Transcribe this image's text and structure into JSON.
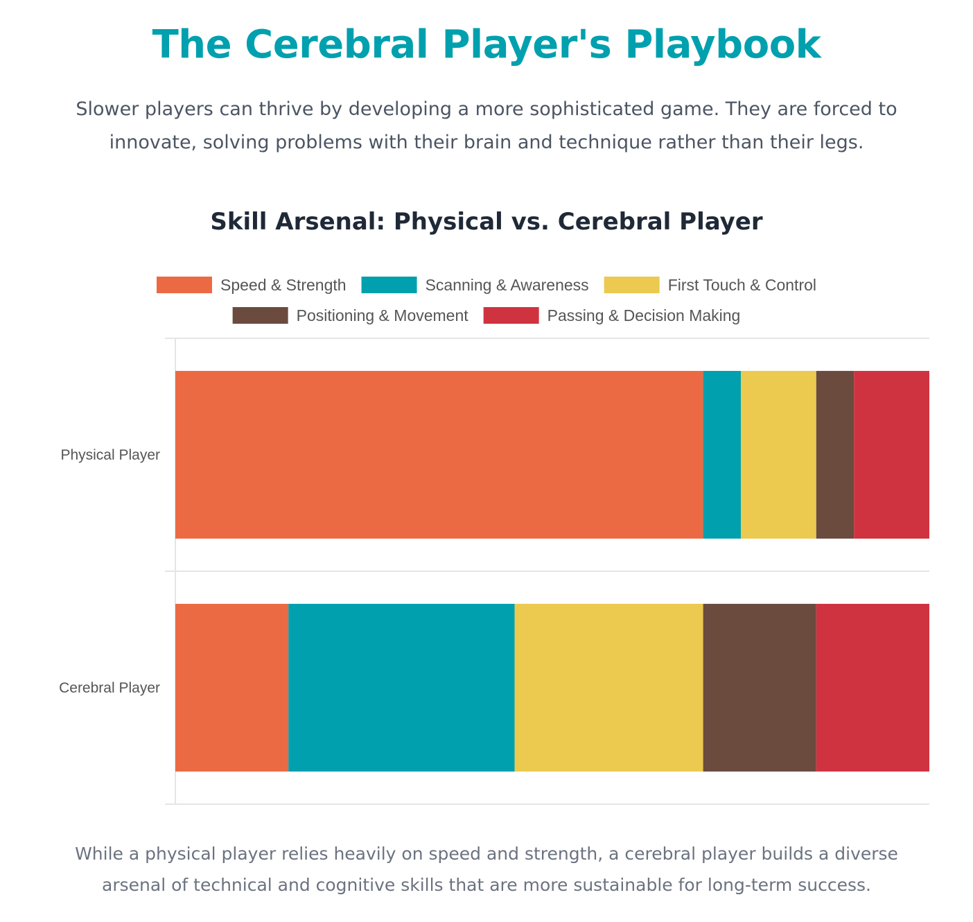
{
  "header": {
    "title": "The Cerebral Player's Playbook",
    "intro": "Slower players can thrive by developing a more sophisticated game. They are forced to innovate, solving problems with their brain and technique rather than their legs."
  },
  "footer": {
    "text": "While a physical player relies heavily on speed and strength, a cerebral player builds a diverse arsenal of technical and cognitive skills that are more sustainable for long-term success."
  },
  "chart_data": {
    "type": "bar",
    "orientation": "horizontal",
    "stacked": true,
    "title": "Skill Arsenal: Physical vs. Cerebral Player",
    "categories": [
      "Physical Player",
      "Cerebral Player"
    ],
    "series": [
      {
        "name": "Speed & Strength",
        "color": "#eb6a44",
        "values": [
          70,
          15
        ]
      },
      {
        "name": "Scanning & Awareness",
        "color": "#00a0ae",
        "values": [
          5,
          30
        ]
      },
      {
        "name": "First Touch & Control",
        "color": "#ecc94f",
        "values": [
          10,
          25
        ]
      },
      {
        "name": "Positioning & Movement",
        "color": "#6b4b3e",
        "values": [
          5,
          15
        ]
      },
      {
        "name": "Passing & Decision Making",
        "color": "#d03340",
        "values": [
          10,
          15
        ]
      }
    ],
    "xlim": [
      0,
      100
    ],
    "x_axis_visible": false,
    "legend_position": "top",
    "grid": true
  }
}
